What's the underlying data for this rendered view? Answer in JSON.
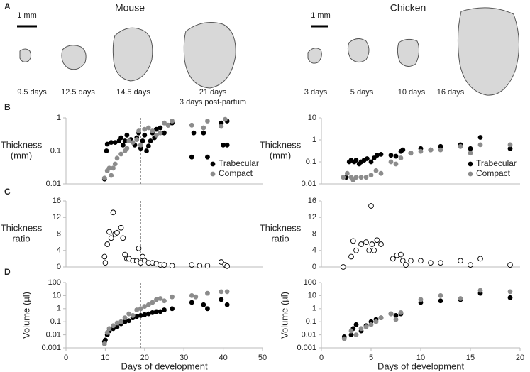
{
  "panels": [
    "A",
    "B",
    "C",
    "D"
  ],
  "images": {
    "mouse": {
      "title": "Mouse",
      "scale": "1 mm",
      "stages": [
        "9.5 days",
        "12.5 days",
        "14.5 days",
        "21 days"
      ],
      "note": "3 days post-partum"
    },
    "chicken": {
      "title": "Chicken",
      "scale": "1 mm",
      "stages": [
        "3 days",
        "5 days",
        "10 days",
        "16 days"
      ]
    }
  },
  "chart_data": [
    {
      "type": "scatter",
      "ylabel": [
        "Thickness",
        "(mm)"
      ],
      "xlim": [
        0,
        50
      ],
      "ylim": [
        0.01,
        1
      ],
      "yticks": [
        0.01,
        0.1,
        1
      ],
      "log_y": true,
      "vline": 19,
      "legend": "lower right",
      "series": [
        {
          "name": "Trabecular",
          "color": "#000000",
          "x": [
            9.8,
            10.3,
            10.5,
            11.5,
            12.5,
            13.5,
            14,
            14.5,
            15,
            15.5,
            16.5,
            17.5,
            18,
            18.5,
            19,
            19.5,
            20,
            20.5,
            21,
            21.5,
            22,
            22.5,
            23,
            24,
            25,
            26,
            27,
            32,
            32.5,
            35,
            36,
            39.5,
            40,
            41,
            41
          ],
          "values": [
            0.014,
            0.1,
            0.16,
            0.18,
            0.18,
            0.2,
            0.25,
            0.15,
            0.2,
            0.3,
            0.22,
            0.15,
            0.25,
            0.35,
            0.12,
            0.2,
            0.3,
            0.1,
            0.14,
            0.2,
            0.35,
            0.25,
            0.45,
            0.5,
            0.35,
            0.6,
            0.7,
            0.065,
            0.35,
            0.35,
            0.065,
            0.7,
            0.15,
            0.15,
            0.8
          ]
        },
        {
          "name": "Compact",
          "color": "#8c8c8c",
          "x": [
            9.8,
            10.5,
            11,
            12,
            11.5,
            12.5,
            13,
            14,
            15,
            15.5,
            16,
            17,
            18,
            18.5,
            19,
            20,
            21,
            22,
            23,
            24,
            25,
            26,
            27,
            32,
            35,
            36,
            39.5,
            40.5
          ],
          "values": [
            0.015,
            0.025,
            0.03,
            0.03,
            0.018,
            0.04,
            0.06,
            0.08,
            0.1,
            0.12,
            0.2,
            0.18,
            0.22,
            0.4,
            0.15,
            0.45,
            0.5,
            0.4,
            0.3,
            0.35,
            0.7,
            0.6,
            0.8,
            0.6,
            0.5,
            0.8,
            0.55,
            0.9
          ]
        }
      ]
    },
    {
      "type": "scatter",
      "ylabel": [
        "Thickness",
        "ratio"
      ],
      "xlim": [
        0,
        50
      ],
      "ylim": [
        0,
        16
      ],
      "yticks": [
        0,
        4,
        8,
        12,
        16
      ],
      "vline": 19,
      "marker": "open",
      "series": [
        {
          "color": "#000000",
          "x": [
            9.8,
            10,
            10.5,
            11,
            11.5,
            12,
            12.5,
            13,
            14,
            14.5,
            15,
            15.5,
            16,
            17,
            18,
            18.5,
            19,
            19.5,
            20,
            21,
            22,
            23,
            24,
            25,
            27,
            32,
            34,
            36,
            39.5,
            40.5,
            41
          ],
          "values": [
            2.5,
            1,
            5.5,
            8.5,
            7,
            13.2,
            8,
            8.3,
            9.5,
            7,
            3,
            2,
            2,
            1.5,
            1.5,
            4.5,
            1,
            2.5,
            1.5,
            1,
            1,
            0.8,
            0.5,
            0.5,
            0.3,
            0.5,
            0.3,
            0.3,
            1.2,
            0.5,
            0.2
          ]
        }
      ]
    },
    {
      "type": "scatter",
      "ylabel": "Volume (µl)",
      "xlabel": "Days of development",
      "xlim": [
        0,
        50
      ],
      "xticks": [
        0,
        10,
        20,
        30,
        40,
        50
      ],
      "ylim": [
        0.001,
        100
      ],
      "yticks": [
        0.001,
        0.01,
        0.1,
        1,
        10,
        100
      ],
      "log_y": true,
      "vline": 19,
      "series": [
        {
          "name": "Trabecular",
          "color": "#000000",
          "x": [
            9.8,
            10,
            10.5,
            11,
            12,
            13,
            14,
            15,
            16,
            17,
            18,
            19,
            20,
            21,
            22,
            23,
            24,
            25,
            27,
            32,
            35,
            36,
            39.5,
            41
          ],
          "values": [
            0.003,
            0.004,
            0.01,
            0.02,
            0.03,
            0.04,
            0.07,
            0.1,
            0.12,
            0.2,
            0.25,
            0.3,
            0.35,
            0.4,
            0.5,
            0.6,
            0.6,
            0.8,
            1,
            3,
            2,
            1,
            5,
            2
          ]
        },
        {
          "name": "Compact",
          "color": "#8c8c8c",
          "x": [
            9.8,
            10.5,
            11,
            12,
            13,
            14,
            15,
            16,
            17,
            18,
            19,
            20,
            21,
            22,
            23,
            24,
            25,
            27,
            32,
            33,
            36,
            39.5,
            41
          ],
          "values": [
            0.002,
            0.015,
            0.03,
            0.05,
            0.08,
            0.1,
            0.2,
            0.4,
            0.3,
            0.8,
            1,
            1.5,
            2,
            3,
            5,
            6,
            4,
            8,
            10,
            8,
            15,
            20,
            20
          ]
        }
      ]
    },
    {
      "type": "scatter",
      "ylabel": [
        "Thickness",
        "(mm)"
      ],
      "xlim": [
        0,
        20
      ],
      "ylim": [
        0.01,
        10
      ],
      "yticks": [
        0.01,
        0.1,
        1,
        10
      ],
      "log_y": true,
      "legend": "lower right",
      "series": [
        {
          "name": "Trabecular",
          "color": "#000000",
          "x": [
            2.5,
            2.8,
            3,
            3.3,
            3.5,
            3.8,
            4,
            4.3,
            4.6,
            5,
            5.3,
            5.6,
            6,
            7,
            7.5,
            8,
            8.2,
            9,
            10,
            11,
            12,
            14,
            15,
            16,
            19
          ],
          "values": [
            0.02,
            0.1,
            0.12,
            0.1,
            0.12,
            0.08,
            0.1,
            0.12,
            0.14,
            0.1,
            0.15,
            0.2,
            0.22,
            0.2,
            0.18,
            0.3,
            0.35,
            0.25,
            0.4,
            0.35,
            0.5,
            0.6,
            0.4,
            1.3,
            0.4
          ]
        },
        {
          "name": "Compact",
          "color": "#8c8c8c",
          "x": [
            2.2,
            2.6,
            3,
            3.2,
            3.5,
            4,
            4.5,
            5,
            5.5,
            6,
            7,
            7.5,
            8,
            9,
            10,
            11,
            12,
            14,
            15,
            16,
            19
          ],
          "values": [
            0.02,
            0.03,
            0.02,
            0.015,
            0.02,
            0.02,
            0.02,
            0.025,
            0.04,
            0.03,
            0.1,
            0.08,
            0.15,
            0.25,
            0.3,
            0.35,
            0.35,
            0.5,
            0.25,
            0.6,
            0.6
          ]
        }
      ]
    },
    {
      "type": "scatter",
      "ylabel": [
        "Thickness",
        "ratio"
      ],
      "xlim": [
        0,
        20
      ],
      "ylim": [
        0,
        16
      ],
      "yticks": [
        0,
        4,
        8,
        12,
        16
      ],
      "marker": "open",
      "series": [
        {
          "color": "#000000",
          "x": [
            2.2,
            3,
            3.2,
            3.5,
            4,
            4.5,
            4.8,
            5,
            5.1,
            5.3,
            5.6,
            6,
            7.2,
            7.6,
            8,
            8.2,
            8.5,
            9,
            10,
            11,
            12,
            14,
            15,
            16,
            19
          ],
          "values": [
            0,
            2.5,
            6.3,
            4,
            5.5,
            6,
            4,
            14.8,
            5.5,
            4,
            6.5,
            5.5,
            2,
            2.8,
            3,
            1.5,
            0.5,
            1.5,
            1.5,
            1,
            1,
            1.5,
            0.5,
            2,
            0.5
          ]
        }
      ]
    },
    {
      "type": "scatter",
      "ylabel": "Volume (µl)",
      "xlabel": "Days of development",
      "xlim": [
        0,
        20
      ],
      "xticks": [
        0,
        5,
        10,
        15,
        20
      ],
      "ylim": [
        0.001,
        100
      ],
      "yticks": [
        0.001,
        0.01,
        0.1,
        1,
        10,
        100
      ],
      "log_y": true,
      "series": [
        {
          "name": "Trabecular",
          "color": "#000000",
          "x": [
            2.3,
            3,
            3.2,
            3.5,
            4,
            4.5,
            5,
            5.5,
            6,
            7,
            7.5,
            8,
            10,
            12,
            14,
            16,
            19
          ],
          "values": [
            0.007,
            0.01,
            0.03,
            0.06,
            0.02,
            0.05,
            0.1,
            0.15,
            0.2,
            0.4,
            0.3,
            0.4,
            3,
            4,
            5,
            15,
            7
          ]
        },
        {
          "name": "Compact",
          "color": "#8c8c8c",
          "x": [
            2.3,
            3,
            3.5,
            4,
            4.5,
            5,
            5.5,
            6,
            7,
            7.5,
            8,
            10,
            12,
            14,
            16,
            19
          ],
          "values": [
            0.005,
            0.02,
            0.01,
            0.03,
            0.04,
            0.06,
            0.1,
            0.2,
            0.4,
            0.15,
            0.5,
            5,
            10,
            6,
            25,
            20
          ]
        }
      ]
    }
  ]
}
